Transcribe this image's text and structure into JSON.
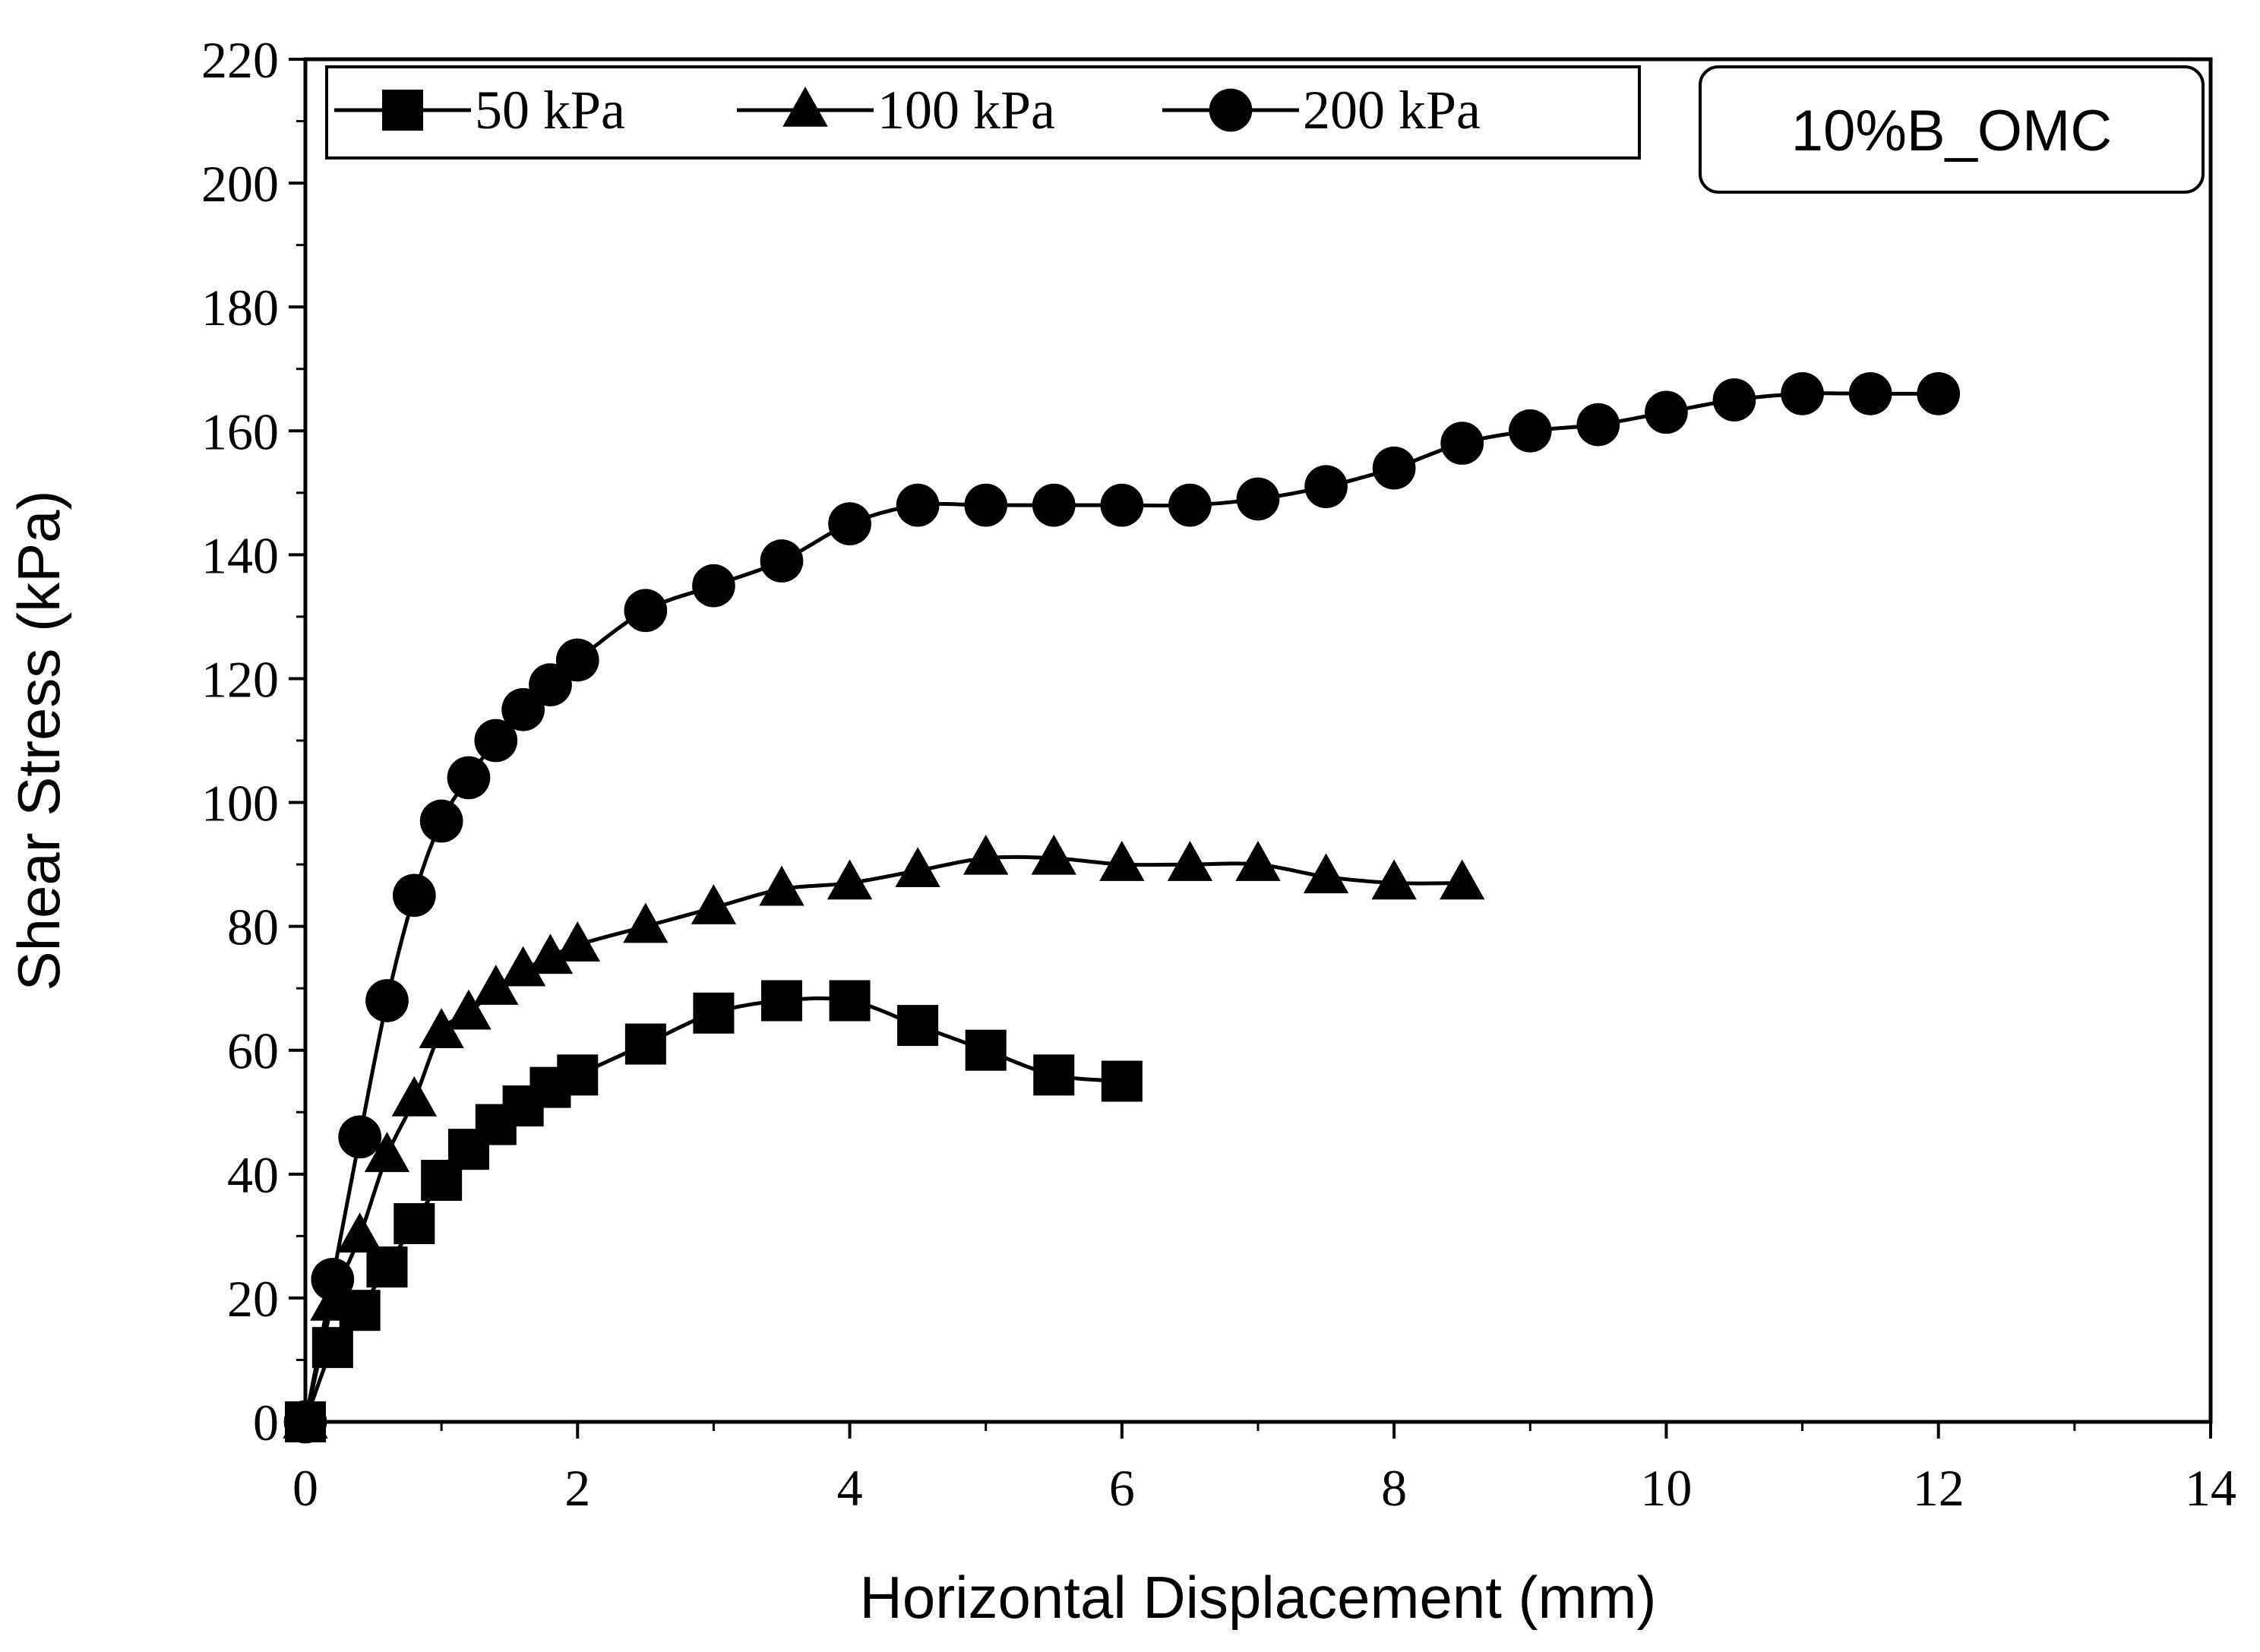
{
  "chart_data": {
    "type": "line",
    "xlabel": "Horizontal Displacement (mm)",
    "ylabel": "Shear Stress (kPa)",
    "xlim": [
      0,
      14
    ],
    "ylim": [
      0,
      220
    ],
    "x_ticks": [
      0,
      2,
      4,
      6,
      8,
      10,
      12,
      14
    ],
    "y_ticks": [
      0,
      20,
      40,
      60,
      80,
      100,
      120,
      140,
      160,
      180,
      200,
      220
    ],
    "grid": false,
    "legend_position": "top-left",
    "annotation": "10%B_OMC",
    "series": [
      {
        "name": "50 kPa",
        "marker": "square",
        "x": [
          0,
          0.2,
          0.4,
          0.6,
          0.8,
          1.0,
          1.2,
          1.4,
          1.6,
          1.8,
          2.0,
          2.5,
          3.0,
          3.5,
          4.0,
          4.5,
          5.0,
          5.5,
          6.0
        ],
        "y": [
          0,
          12,
          18,
          25,
          32,
          39,
          44,
          48,
          51,
          54,
          56,
          61,
          66,
          68,
          68,
          64,
          60,
          56,
          55
        ]
      },
      {
        "name": "100 kPa",
        "marker": "triangle",
        "x": [
          0,
          0.2,
          0.4,
          0.6,
          0.8,
          1.0,
          1.2,
          1.4,
          1.6,
          1.8,
          2.0,
          2.5,
          3.0,
          3.5,
          4.0,
          4.5,
          5.0,
          5.5,
          6.0,
          6.5,
          7.0,
          7.5,
          8.0,
          8.5
        ],
        "y": [
          0,
          19,
          30,
          43,
          52,
          63,
          66,
          70,
          73,
          75,
          77,
          80,
          83,
          86,
          87,
          89,
          91,
          91,
          90,
          90,
          90,
          88,
          87,
          87
        ]
      },
      {
        "name": "200 kPa",
        "marker": "circle",
        "x": [
          0,
          0.2,
          0.4,
          0.6,
          0.8,
          1.0,
          1.2,
          1.4,
          1.6,
          1.8,
          2.0,
          2.5,
          3.0,
          3.5,
          4.0,
          4.5,
          5.0,
          5.5,
          6.0,
          6.5,
          7.0,
          7.5,
          8.0,
          8.5,
          9.0,
          9.5,
          10.0,
          10.5,
          11.0,
          11.5,
          12.0
        ],
        "y": [
          0,
          23,
          46,
          68,
          85,
          97,
          104,
          110,
          115,
          119,
          123,
          131,
          135,
          139,
          145,
          148,
          148,
          148,
          148,
          148,
          149,
          151,
          154,
          158,
          160,
          161,
          163,
          165,
          166,
          166,
          166
        ]
      }
    ]
  }
}
